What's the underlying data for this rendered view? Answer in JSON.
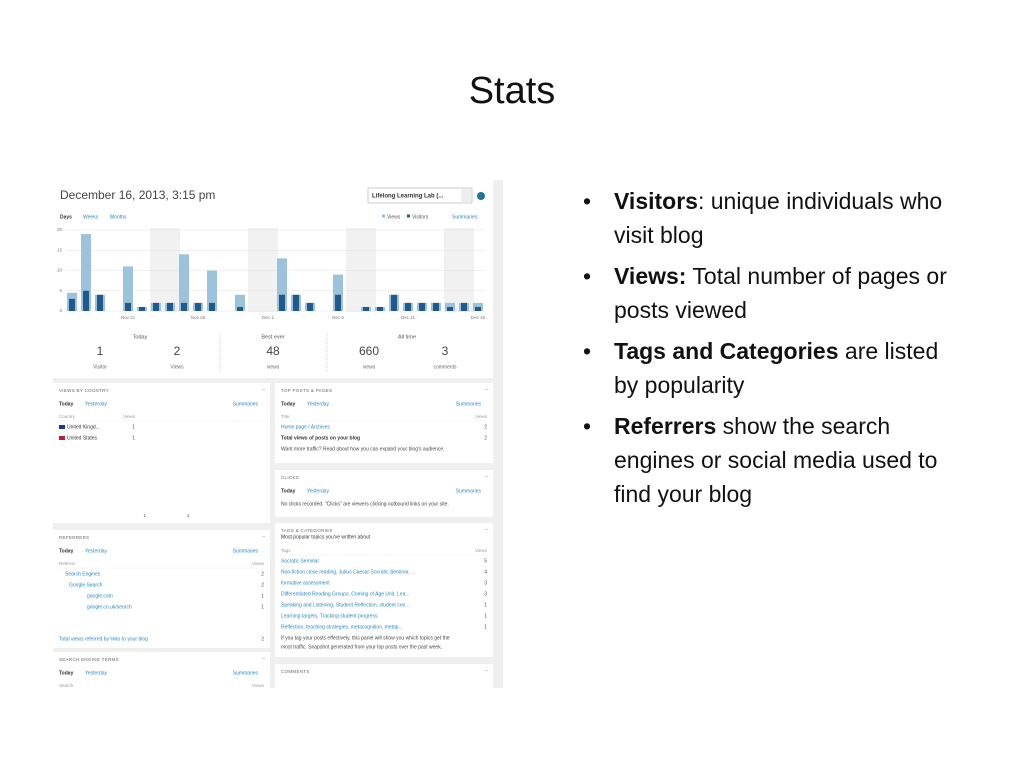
{
  "title": "Stats",
  "bullets": [
    {
      "bold": "Visitors",
      "text": ": unique individuals who visit blog"
    },
    {
      "bold": "Views:",
      "text": " Total number of pages or posts viewed"
    },
    {
      "bold": "Tags and Categories",
      "text": " are listed by popularity"
    },
    {
      "bold": "Referrers",
      "text": " show the search engines or social media used to find your blog"
    }
  ],
  "screenshot": {
    "header": "December 16, 2013, 3:15 pm",
    "site_select": "Lifelong Learning Lab (...",
    "periods": [
      "Days",
      "Weeks",
      "Months"
    ],
    "summaries": "Summaries",
    "chart": {
      "type": "bar",
      "categories": [
        null,
        null,
        null,
        null,
        "Nov 21",
        null,
        null,
        null,
        null,
        "Nov 26",
        null,
        null,
        null,
        null,
        "Dec 1",
        null,
        null,
        null,
        null,
        "Dec 6",
        null,
        null,
        null,
        null,
        "Dec 11",
        null,
        null,
        null,
        null,
        "Dec 16"
      ],
      "series": [
        {
          "name": "Views",
          "color": "#9dc3dc",
          "values": [
            4.5,
            19,
            4,
            0,
            11,
            1,
            2,
            2,
            14,
            2,
            10,
            0,
            4,
            0,
            0,
            13,
            4,
            2,
            0,
            9,
            0,
            1,
            1,
            4,
            2,
            2,
            2,
            2,
            2,
            2
          ]
        },
        {
          "name": "Visitors",
          "color": "#21598c",
          "values": [
            3,
            5,
            4,
            0,
            2,
            1,
            2,
            2,
            2,
            2,
            2,
            0,
            1,
            0,
            0,
            4,
            4,
            2,
            0,
            4,
            0,
            1,
            1,
            4,
            2,
            2,
            2,
            1,
            2,
            1
          ]
        }
      ],
      "ylim": [
        0,
        20
      ],
      "yticks": [
        0,
        5,
        10,
        15,
        20
      ],
      "grid": true
    },
    "stats": [
      {
        "label": "Today",
        "items": [
          {
            "value": 1,
            "label": "Visitor"
          },
          {
            "value": 2,
            "label": "Views"
          }
        ]
      },
      {
        "label": "Best ever",
        "items": [
          {
            "value": 48,
            "label": "views"
          }
        ]
      },
      {
        "label": "All time",
        "items": [
          {
            "value": 660,
            "label": "views"
          },
          {
            "value": 3,
            "label": "comments"
          }
        ]
      }
    ],
    "panels": {
      "country": {
        "title": "VIEWS BY COUNTRY",
        "tabs": [
          "Today",
          "Yesterday"
        ],
        "summaries": "Summaries",
        "columns": [
          "Country",
          "Views"
        ],
        "rows": [
          [
            "United Kingd...",
            1
          ],
          [
            "United States",
            1
          ]
        ],
        "map_legend": {
          "min": 1,
          "max": 1
        }
      },
      "top_posts": {
        "title": "TOP POSTS & PAGES",
        "tabs": [
          "Today",
          "Yesterday"
        ],
        "summaries": "Summaries",
        "columns": [
          "Title",
          "Views"
        ],
        "rows": [
          [
            "Home page / Archives",
            2
          ],
          [
            "Total views of posts on your blog",
            2
          ]
        ],
        "notes": [
          "Want more traffic? Read about how you can expand your blog's audience."
        ]
      },
      "clicks": {
        "title": "CLICKS",
        "tabs": [
          "Today",
          "Yesterday"
        ],
        "summaries": "Summaries",
        "notes": [
          "No clicks recorded. \"Clicks\" are viewers clicking outbound links on your site."
        ]
      },
      "tags": {
        "title": "TAGS & CATEGORIES",
        "subtitle": "Most popular topics you've written about",
        "columns": [
          "Tags",
          "Views"
        ],
        "rows": [
          [
            "Socratic Seminar",
            5
          ],
          [
            "Non-fiction close reading, Julius Caesar Socratic Seminar, ...",
            4
          ],
          [
            "formative assessment",
            3
          ],
          [
            "Differentiated Reading Groups, Coming of Age Unit, Lea...",
            3
          ],
          [
            "Speaking and Listening, Student Reflection, student con...",
            1
          ],
          [
            "Learning targets, Tracking student progress",
            1
          ],
          [
            "Reflection, teaching strategies, metacognition, metap...",
            1
          ]
        ],
        "notes": [
          "If you tag your posts effectively, this panel will show you which topics get the",
          "most traffic. Snapshot generated from your top posts over the past week."
        ]
      },
      "referrers": {
        "title": "REFERRERS",
        "tabs": [
          "Today",
          "Yesterday"
        ],
        "summaries": "Summaries",
        "columns": [
          "Referrer",
          "Views"
        ],
        "rows": [
          [
            "Search Engines",
            2
          ],
          [
            "Google Search",
            2
          ],
          [
            "google.com",
            1
          ],
          [
            "google.co.uk/search",
            1
          ]
        ],
        "total": [
          "Total views referred by links to your blog",
          2
        ]
      },
      "search_terms": {
        "title": "SEARCH ENGINE TERMS",
        "tabs": [
          "Today",
          "Yesterday"
        ],
        "summaries": "Summaries",
        "columns": [
          "Search",
          "Views"
        ]
      },
      "comments": {
        "title": "COMMENTS"
      }
    }
  }
}
